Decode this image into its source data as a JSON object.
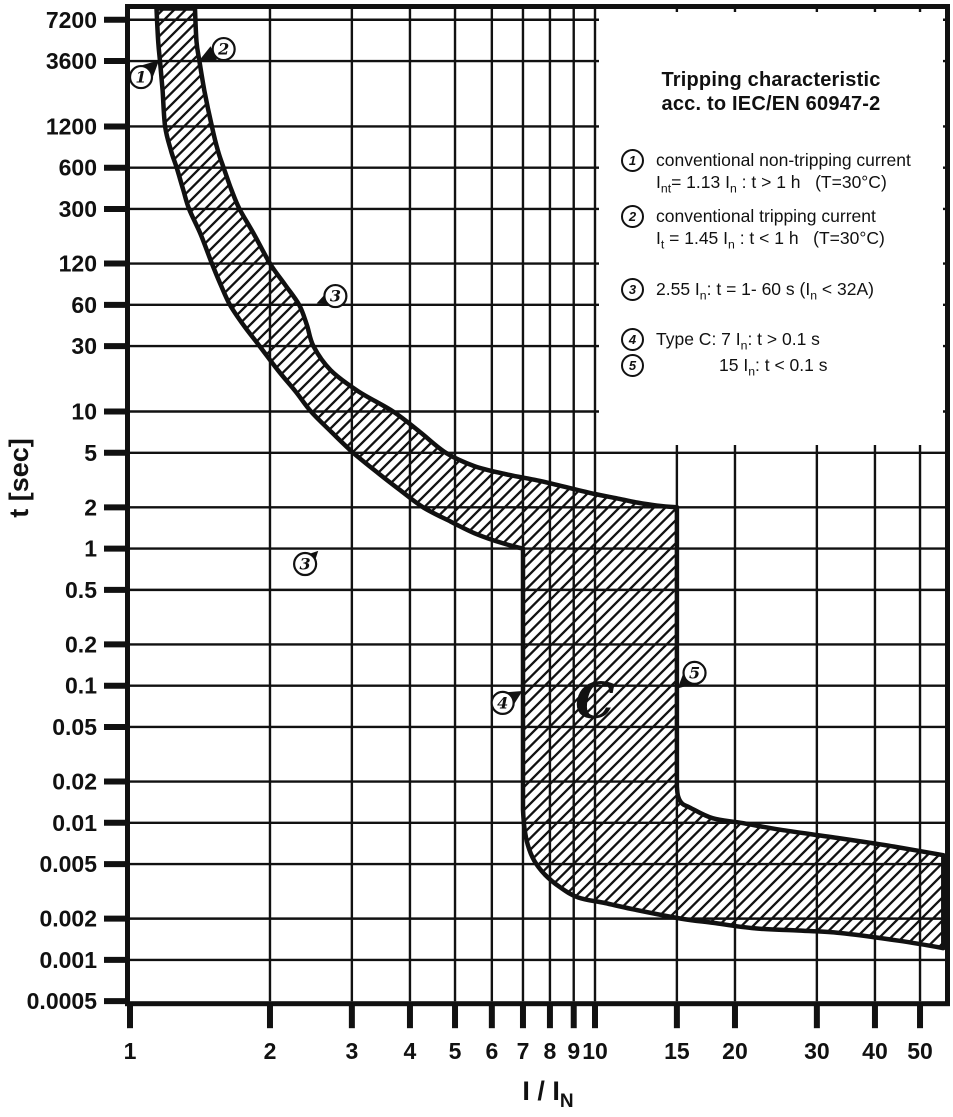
{
  "colors": {
    "ink": "#111111",
    "background": "#ffffff"
  },
  "chart_data": {
    "type": "area",
    "title": "Tripping characteristic acc. to IEC/EN 60947-2",
    "xlabel": "I / I_{N}",
    "ylabel": "t [sec]",
    "x_scale": "log",
    "y_scale": "log",
    "xlim": [
      1,
      56.1
    ],
    "ylim": [
      0.0005,
      8700
    ],
    "grid": true,
    "x_ticks": [
      "1",
      "2",
      "3",
      "4",
      "5",
      "6",
      "7",
      "8",
      "9",
      "10",
      "15",
      "20",
      "30",
      "40",
      "50"
    ],
    "y_ticks": [
      "7200",
      "3600",
      "1200",
      "600",
      "300",
      "120",
      "60",
      "30",
      "10",
      "5",
      "2",
      "1",
      "0.5",
      "0.2",
      "0.1",
      "0.05",
      "0.02",
      "0.01",
      "0.005",
      "0.002",
      "0.001",
      "0.0005"
    ],
    "band": {
      "description": "hatched tolerance band of the C-curve tripping characteristic; x = multiple of rated current I/In, t = trip time in seconds",
      "lower": [
        [
          1.14,
          8700,
          1
        ],
        [
          1.15,
          5000
        ],
        [
          1.16,
          3600
        ],
        [
          1.175,
          2200
        ],
        [
          1.19,
          1200
        ],
        [
          1.225,
          800
        ],
        [
          1.26,
          600
        ],
        [
          1.3,
          420
        ],
        [
          1.34,
          300
        ],
        [
          1.42,
          195
        ],
        [
          1.5,
          120
        ],
        [
          1.565,
          85
        ],
        [
          1.64,
          60
        ],
        [
          1.76,
          42
        ],
        [
          1.9,
          30
        ],
        [
          2.08,
          20
        ],
        [
          2.27,
          14
        ],
        [
          2.45,
          10
        ],
        [
          2.71,
          7.1
        ],
        [
          3.02,
          5
        ],
        [
          3.42,
          3.55
        ],
        [
          3.82,
          2.65
        ],
        [
          4.27,
          2.0
        ],
        [
          4.9,
          1.57
        ],
        [
          5.55,
          1.28
        ],
        [
          6.3,
          1.1
        ],
        [
          7.0,
          1.0,
          1
        ],
        [
          7.0,
          0.0125,
          1
        ],
        [
          7.05,
          0.0092
        ],
        [
          7.17,
          0.0069
        ],
        [
          7.4,
          0.0053
        ],
        [
          7.8,
          0.0042
        ],
        [
          8.4,
          0.0034
        ],
        [
          9.2,
          0.00285
        ],
        [
          10.5,
          0.0026
        ],
        [
          12,
          0.00235
        ],
        [
          15.3,
          0.002
        ],
        [
          18,
          0.00186
        ],
        [
          22,
          0.0017
        ],
        [
          27,
          0.00164
        ],
        [
          33.7,
          0.00157
        ],
        [
          45,
          0.00138
        ],
        [
          56.1,
          0.00122,
          1
        ]
      ],
      "upper": [
        [
          1.38,
          8700,
          1
        ],
        [
          1.39,
          5000
        ],
        [
          1.41,
          3600
        ],
        [
          1.445,
          2200
        ],
        [
          1.5,
          1200
        ],
        [
          1.545,
          800
        ],
        [
          1.59,
          600
        ],
        [
          1.65,
          420
        ],
        [
          1.72,
          300
        ],
        [
          1.85,
          195
        ],
        [
          2.0,
          120
        ],
        [
          2.15,
          85
        ],
        [
          2.31,
          60
        ],
        [
          2.4,
          43
        ],
        [
          2.48,
          30
        ],
        [
          2.7,
          20
        ],
        [
          3.1,
          14
        ],
        [
          3.68,
          10
        ],
        [
          4.2,
          7.1
        ],
        [
          4.78,
          5
        ],
        [
          5.5,
          4.0
        ],
        [
          6.4,
          3.5
        ],
        [
          7.5,
          3.15
        ],
        [
          8.33,
          2.9
        ],
        [
          10,
          2.5
        ],
        [
          11.1,
          2.33
        ],
        [
          12.3,
          2.17
        ],
        [
          13.6,
          2.06
        ],
        [
          15,
          2.0,
          1
        ],
        [
          15,
          0.0185,
          1
        ],
        [
          15.1,
          0.0155
        ],
        [
          15.4,
          0.0138
        ],
        [
          16,
          0.0129
        ],
        [
          17.9,
          0.0108
        ],
        [
          20.6,
          0.01
        ],
        [
          25,
          0.0089
        ],
        [
          33.7,
          0.0077
        ],
        [
          44,
          0.0067
        ],
        [
          56.1,
          0.0058,
          1
        ]
      ]
    },
    "curve_label": {
      "text": "C",
      "x": 10.0,
      "t": 0.058
    },
    "markers": [
      {
        "n": "1",
        "cx": 1.056,
        "cy": 2750,
        "tx": 1.155,
        "ty": 3650
      },
      {
        "n": "2",
        "cx": 1.59,
        "cy": 4400,
        "tx": 1.41,
        "ty": 3650
      },
      {
        "n": "3",
        "cx": 2.765,
        "cy": 69.5,
        "tx": 2.52,
        "ty": 61.5
      },
      {
        "n": "3",
        "cx": 2.38,
        "cy": 0.772,
        "tx": 2.54,
        "ty": 0.962
      },
      {
        "n": "4",
        "cx": 6.33,
        "cy": 0.0749,
        "tx": 6.98,
        "ty": 0.0915
      },
      {
        "n": "5",
        "cx": 16.37,
        "cy": 0.124,
        "tx": 15.05,
        "ty": 0.0955
      }
    ]
  },
  "legend": {
    "title_lines": [
      "Tripping characteristic",
      "acc. to IEC/EN 60947-2"
    ],
    "items": [
      {
        "n": "1",
        "lines": [
          "conventional non-tripping current",
          "I_{nt}= 1.13 I_{n} : t > 1 h   (T=30°C)"
        ]
      },
      {
        "n": "2",
        "lines": [
          "conventional tripping current",
          "I_{t} = 1.45 I_{n} : t < 1 h   (T=30°C)"
        ]
      },
      {
        "n": "3",
        "lines": [
          "2.55 I_{n}: t = 1- 60 s (I_{n} < 32A)"
        ]
      },
      {
        "n": "4",
        "lines": [
          "Type C:  7 I_{n}: t > 0.1 s"
        ]
      },
      {
        "n": "5",
        "lines": [
          "15 I_{n}: t < 0.1 s"
        ]
      }
    ]
  }
}
